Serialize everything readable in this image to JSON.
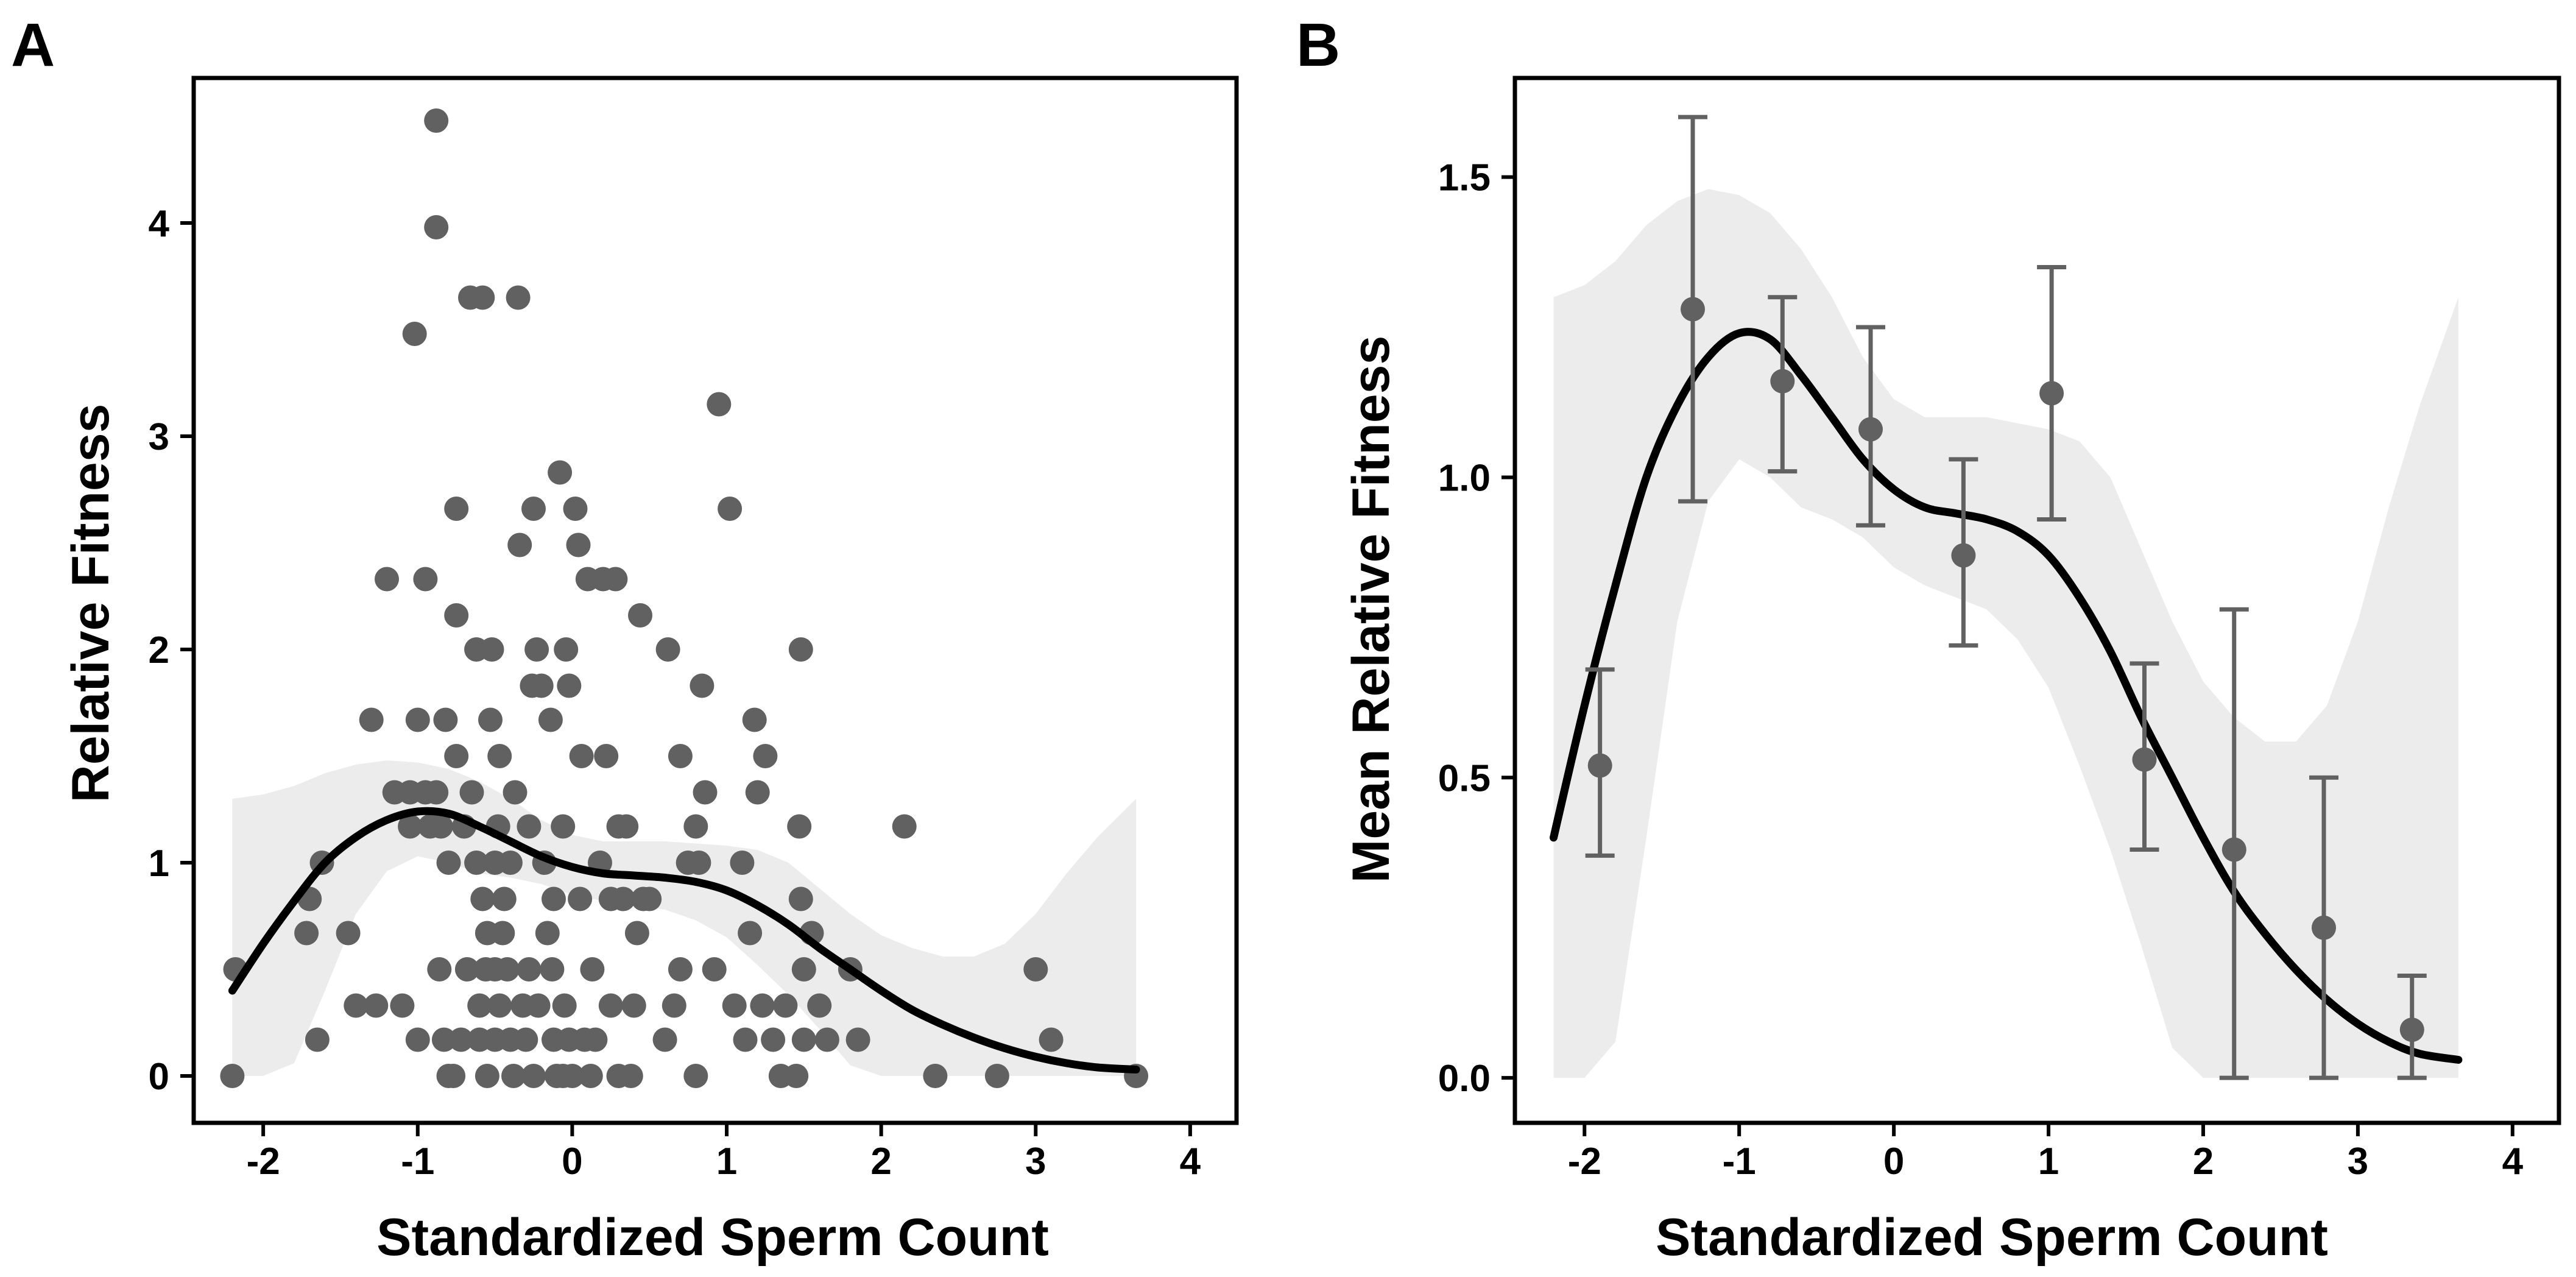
{
  "chart_data": [
    {
      "panel": "A",
      "type": "scatter",
      "title": "",
      "xlabel": "Standardized Sperm Count",
      "ylabel": "Relative Fitness",
      "xlim": [
        -2.45,
        4.3
      ],
      "ylim": [
        -0.22,
        4.68
      ],
      "xticks": [
        -2,
        -1,
        0,
        1,
        2,
        3,
        4
      ],
      "xtick_labels": [
        "-2",
        "-1",
        "0",
        "1",
        "2",
        "3",
        "4"
      ],
      "yticks": [
        0,
        1,
        2,
        3,
        4
      ],
      "ytick_labels": [
        "0",
        "1",
        "2",
        "3",
        "4"
      ],
      "grid": false,
      "colors": {
        "points": "#616161",
        "curve": "#000000",
        "band": "#ececec",
        "frame": "#000000"
      },
      "points": [
        [
          -2.2,
          0
        ],
        [
          -2.18,
          0.5
        ],
        [
          -1.72,
          0.67
        ],
        [
          -1.7,
          0.83
        ],
        [
          -1.65,
          0.17
        ],
        [
          -1.62,
          1.0
        ],
        [
          -1.45,
          0.67
        ],
        [
          -1.4,
          0.33
        ],
        [
          -1.3,
          1.67
        ],
        [
          -1.27,
          0.33
        ],
        [
          -1.2,
          2.33
        ],
        [
          -1.15,
          1.33
        ],
        [
          -1.1,
          0.33
        ],
        [
          -1.05,
          1.33
        ],
        [
          -1.05,
          1.17
        ],
        [
          -1.02,
          3.48
        ],
        [
          -1.0,
          0.17
        ],
        [
          -1.0,
          1.67
        ],
        [
          -0.95,
          2.33
        ],
        [
          -0.95,
          1.33
        ],
        [
          -0.92,
          1.17
        ],
        [
          -0.88,
          4.48
        ],
        [
          -0.88,
          3.98
        ],
        [
          -0.88,
          1.33
        ],
        [
          -0.86,
          0.5
        ],
        [
          -0.85,
          1.17
        ],
        [
          -0.83,
          0.17
        ],
        [
          -0.82,
          1.67
        ],
        [
          -0.8,
          1.0
        ],
        [
          -0.8,
          0.0
        ],
        [
          -0.77,
          0.0
        ],
        [
          -0.75,
          2.16
        ],
        [
          -0.75,
          1.5
        ],
        [
          -0.75,
          2.66
        ],
        [
          -0.72,
          0.17
        ],
        [
          -0.7,
          1.17
        ],
        [
          -0.68,
          0.5
        ],
        [
          -0.66,
          3.65
        ],
        [
          -0.65,
          1.33
        ],
        [
          -0.62,
          2.0
        ],
        [
          -0.62,
          1.0
        ],
        [
          -0.6,
          0.33
        ],
        [
          -0.6,
          0.17
        ],
        [
          -0.58,
          0.83
        ],
        [
          -0.58,
          3.65
        ],
        [
          -0.56,
          0.5
        ],
        [
          -0.55,
          0.67
        ],
        [
          -0.55,
          0.0
        ],
        [
          -0.53,
          1.67
        ],
        [
          -0.52,
          2.0
        ],
        [
          -0.5,
          1.0
        ],
        [
          -0.5,
          0.5
        ],
        [
          -0.5,
          0.17
        ],
        [
          -0.48,
          1.17
        ],
        [
          -0.47,
          0.33
        ],
        [
          -0.47,
          1.5
        ],
        [
          -0.45,
          0.67
        ],
        [
          -0.44,
          0.83
        ],
        [
          -0.42,
          0.5
        ],
        [
          -0.4,
          0.17
        ],
        [
          -0.4,
          1.0
        ],
        [
          -0.38,
          0.0
        ],
        [
          -0.37,
          1.33
        ],
        [
          -0.35,
          3.65
        ],
        [
          -0.34,
          2.49
        ],
        [
          -0.32,
          0.33
        ],
        [
          -0.3,
          0.17
        ],
        [
          -0.28,
          0.5
        ],
        [
          -0.28,
          1.17
        ],
        [
          -0.26,
          1.83
        ],
        [
          -0.25,
          0.0
        ],
        [
          -0.25,
          2.66
        ],
        [
          -0.23,
          2.0
        ],
        [
          -0.22,
          0.33
        ],
        [
          -0.2,
          1.83
        ],
        [
          -0.18,
          1.0
        ],
        [
          -0.16,
          0.67
        ],
        [
          -0.14,
          1.67
        ],
        [
          -0.13,
          0.5
        ],
        [
          -0.12,
          0.17
        ],
        [
          -0.12,
          0.83
        ],
        [
          -0.1,
          0.0
        ],
        [
          -0.08,
          2.83
        ],
        [
          -0.06,
          1.17
        ],
        [
          -0.06,
          0.0
        ],
        [
          -0.05,
          0.33
        ],
        [
          -0.04,
          2.0
        ],
        [
          -0.02,
          1.83
        ],
        [
          -0.02,
          0.17
        ],
        [
          0.0,
          0.0
        ],
        [
          0.02,
          2.66
        ],
        [
          0.04,
          2.49
        ],
        [
          0.05,
          0.83
        ],
        [
          0.06,
          1.5
        ],
        [
          0.08,
          0.17
        ],
        [
          0.1,
          2.33
        ],
        [
          0.12,
          0.0
        ],
        [
          0.13,
          0.5
        ],
        [
          0.15,
          0.17
        ],
        [
          0.18,
          1.0
        ],
        [
          0.2,
          2.33
        ],
        [
          0.22,
          1.5
        ],
        [
          0.25,
          0.83
        ],
        [
          0.25,
          0.33
        ],
        [
          0.28,
          2.33
        ],
        [
          0.3,
          0.0
        ],
        [
          0.3,
          1.17
        ],
        [
          0.33,
          0.83
        ],
        [
          0.35,
          1.17
        ],
        [
          0.38,
          0.0
        ],
        [
          0.4,
          0.33
        ],
        [
          0.42,
          0.67
        ],
        [
          0.44,
          2.16
        ],
        [
          0.46,
          0.83
        ],
        [
          0.5,
          0.83
        ],
        [
          0.6,
          0.17
        ],
        [
          0.62,
          2.0
        ],
        [
          0.66,
          0.33
        ],
        [
          0.7,
          1.5
        ],
        [
          0.7,
          0.5
        ],
        [
          0.75,
          1.0
        ],
        [
          0.8,
          0.0
        ],
        [
          0.8,
          1.17
        ],
        [
          0.82,
          1.0
        ],
        [
          0.84,
          1.83
        ],
        [
          0.86,
          1.33
        ],
        [
          0.92,
          0.5
        ],
        [
          0.95,
          3.15
        ],
        [
          1.02,
          2.66
        ],
        [
          1.05,
          0.33
        ],
        [
          1.1,
          1.0
        ],
        [
          1.12,
          0.17
        ],
        [
          1.15,
          0.67
        ],
        [
          1.18,
          1.67
        ],
        [
          1.2,
          1.33
        ],
        [
          1.23,
          0.33
        ],
        [
          1.25,
          1.5
        ],
        [
          1.3,
          0.17
        ],
        [
          1.35,
          0.0
        ],
        [
          1.38,
          0.33
        ],
        [
          1.45,
          0.0
        ],
        [
          1.47,
          1.17
        ],
        [
          1.48,
          2.0
        ],
        [
          1.48,
          0.83
        ],
        [
          1.5,
          0.5
        ],
        [
          1.5,
          0.17
        ],
        [
          1.55,
          0.67
        ],
        [
          1.6,
          0.33
        ],
        [
          1.65,
          0.17
        ],
        [
          1.8,
          0.5
        ],
        [
          1.85,
          0.17
        ],
        [
          2.15,
          1.17
        ],
        [
          2.35,
          0.0
        ],
        [
          2.75,
          0.0
        ],
        [
          3.0,
          0.5
        ],
        [
          3.1,
          0.17
        ],
        [
          3.65,
          0.0
        ]
      ],
      "fit_curve": {
        "x": [
          -2.2,
          -2.0,
          -1.8,
          -1.6,
          -1.4,
          -1.2,
          -1.0,
          -0.8,
          -0.6,
          -0.4,
          -0.2,
          0.0,
          0.2,
          0.4,
          0.6,
          0.8,
          1.0,
          1.2,
          1.4,
          1.6,
          1.8,
          2.0,
          2.2,
          2.4,
          2.6,
          2.8,
          3.0,
          3.2,
          3.4,
          3.65
        ],
        "y": [
          0.4,
          0.62,
          0.82,
          1.0,
          1.12,
          1.2,
          1.24,
          1.23,
          1.17,
          1.1,
          1.03,
          0.98,
          0.95,
          0.94,
          0.93,
          0.91,
          0.87,
          0.8,
          0.71,
          0.6,
          0.5,
          0.4,
          0.31,
          0.24,
          0.18,
          0.13,
          0.09,
          0.06,
          0.04,
          0.03
        ]
      },
      "confidence_band": {
        "x": [
          -2.2,
          -2.0,
          -1.8,
          -1.6,
          -1.4,
          -1.2,
          -1.0,
          -0.8,
          -0.6,
          -0.4,
          -0.2,
          0.0,
          0.2,
          0.4,
          0.6,
          0.8,
          1.0,
          1.2,
          1.4,
          1.6,
          1.8,
          2.0,
          2.2,
          2.4,
          2.6,
          2.8,
          3.0,
          3.2,
          3.4,
          3.65
        ],
        "lower": [
          0.0,
          0.0,
          0.06,
          0.4,
          0.76,
          0.96,
          1.03,
          1.0,
          0.95,
          0.93,
          0.9,
          0.85,
          0.82,
          0.8,
          0.78,
          0.73,
          0.65,
          0.52,
          0.38,
          0.22,
          0.05,
          0.0,
          0.0,
          0.0,
          0.0,
          0.0,
          0.0,
          0.0,
          0.0,
          0.0
        ],
        "upper": [
          1.3,
          1.32,
          1.36,
          1.42,
          1.46,
          1.48,
          1.47,
          1.44,
          1.38,
          1.3,
          1.2,
          1.13,
          1.1,
          1.1,
          1.1,
          1.09,
          1.08,
          1.06,
          1.0,
          0.88,
          0.76,
          0.66,
          0.6,
          0.56,
          0.56,
          0.62,
          0.76,
          0.95,
          1.12,
          1.3
        ]
      }
    },
    {
      "panel": "B",
      "type": "line",
      "title": "",
      "xlabel": "Standardized Sperm Count",
      "ylabel": "Mean Relative Fitness",
      "xlim": [
        -2.45,
        4.3
      ],
      "ylim": [
        -0.075,
        1.665
      ],
      "xticks": [
        -2,
        -1,
        0,
        1,
        2,
        3,
        4
      ],
      "xtick_labels": [
        "-2",
        "-1",
        "0",
        "1",
        "2",
        "3",
        "4"
      ],
      "yticks": [
        0.0,
        0.5,
        1.0,
        1.5
      ],
      "ytick_labels": [
        "0.0",
        "0.5",
        "1.0",
        "1.5"
      ],
      "grid": false,
      "colors": {
        "points": "#616161",
        "errorbars": "#616161",
        "curve": "#000000",
        "band": "#ececec",
        "frame": "#000000"
      },
      "means": {
        "x": [
          -1.9,
          -1.3,
          -0.72,
          -0.15,
          0.45,
          1.02,
          1.62,
          2.2,
          2.78,
          3.35
        ],
        "y": [
          0.52,
          1.28,
          1.16,
          1.08,
          0.87,
          1.14,
          0.53,
          0.38,
          0.25,
          0.08
        ],
        "lower": [
          0.37,
          0.96,
          1.01,
          0.92,
          0.72,
          0.93,
          0.38,
          0.0,
          0.0,
          0.0
        ],
        "upper": [
          0.68,
          1.6,
          1.3,
          1.25,
          1.03,
          1.35,
          0.69,
          0.78,
          0.5,
          0.17
        ]
      },
      "fit_curve": {
        "x": [
          -2.2,
          -2.0,
          -1.8,
          -1.6,
          -1.4,
          -1.2,
          -1.0,
          -0.8,
          -0.6,
          -0.4,
          -0.2,
          0.0,
          0.2,
          0.4,
          0.6,
          0.8,
          1.0,
          1.2,
          1.4,
          1.6,
          1.8,
          2.0,
          2.2,
          2.4,
          2.6,
          2.8,
          3.0,
          3.2,
          3.4,
          3.65
        ],
        "y": [
          0.4,
          0.62,
          0.82,
          1.0,
          1.12,
          1.2,
          1.24,
          1.23,
          1.17,
          1.1,
          1.03,
          0.98,
          0.95,
          0.94,
          0.93,
          0.91,
          0.87,
          0.8,
          0.71,
          0.6,
          0.5,
          0.4,
          0.31,
          0.24,
          0.18,
          0.13,
          0.09,
          0.06,
          0.04,
          0.03
        ]
      },
      "confidence_band": {
        "x": [
          -2.2,
          -2.0,
          -1.8,
          -1.6,
          -1.4,
          -1.2,
          -1.0,
          -0.8,
          -0.6,
          -0.4,
          -0.2,
          0.0,
          0.2,
          0.4,
          0.6,
          0.8,
          1.0,
          1.2,
          1.4,
          1.6,
          1.8,
          2.0,
          2.2,
          2.4,
          2.6,
          2.8,
          3.0,
          3.2,
          3.4,
          3.65
        ],
        "lower": [
          0.0,
          0.0,
          0.06,
          0.4,
          0.76,
          0.96,
          1.03,
          1.0,
          0.95,
          0.93,
          0.9,
          0.85,
          0.82,
          0.8,
          0.78,
          0.73,
          0.65,
          0.52,
          0.38,
          0.22,
          0.05,
          0.0,
          0.0,
          0.0,
          0.0,
          0.0,
          0.0,
          0.0,
          0.0,
          0.0
        ],
        "upper": [
          1.3,
          1.32,
          1.36,
          1.42,
          1.46,
          1.48,
          1.47,
          1.44,
          1.38,
          1.3,
          1.2,
          1.13,
          1.1,
          1.1,
          1.1,
          1.09,
          1.08,
          1.06,
          1.0,
          0.88,
          0.76,
          0.66,
          0.6,
          0.56,
          0.56,
          0.62,
          0.76,
          0.95,
          1.12,
          1.3
        ]
      }
    }
  ]
}
